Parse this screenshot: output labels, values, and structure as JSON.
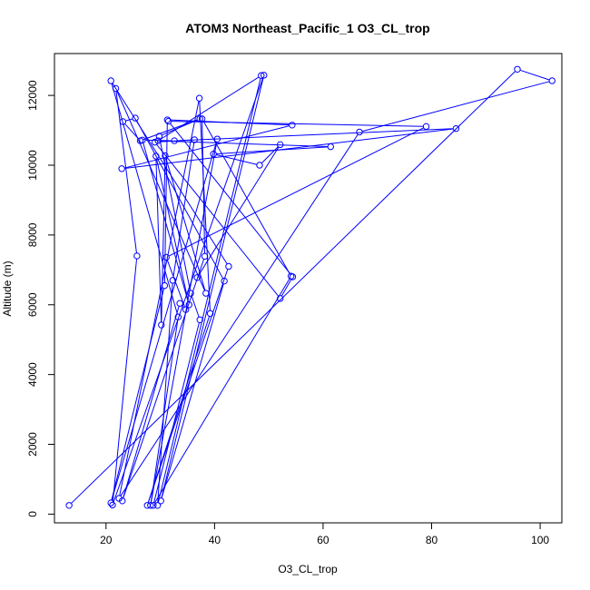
{
  "chart_data": {
    "type": "line",
    "title": "ATOM3 Northeast_Pacific_1 O3_CL_trop",
    "xlabel": "O3_CL_trop",
    "ylabel": "Altitude (m)",
    "xlim": [
      10.5,
      104
    ],
    "ylim": [
      -250,
      13200
    ],
    "xticks": [
      20,
      40,
      60,
      80,
      100
    ],
    "yticks": [
      0,
      2000,
      4000,
      6000,
      8000,
      10000,
      12000
    ],
    "grid": false,
    "line_color": "#0000ff",
    "marker": "open-circle",
    "series": [
      {
        "points": [
          [
            13.2,
            250
          ],
          [
            95.8,
            12750
          ],
          [
            102.2,
            12420
          ],
          [
            66.7,
            10950
          ],
          [
            22.4,
            450
          ],
          [
            37.2,
            11920
          ],
          [
            39.2,
            5750
          ],
          [
            27.6,
            250
          ],
          [
            42.6,
            7100
          ],
          [
            20.9,
            12420
          ],
          [
            33.3,
            5650
          ],
          [
            28.2,
            250
          ],
          [
            40.5,
            10750
          ],
          [
            20.9,
            320
          ],
          [
            30.8,
            6550
          ],
          [
            31.3,
            11300
          ],
          [
            54.3,
            11150
          ],
          [
            22.9,
            9900
          ],
          [
            84.5,
            11050
          ],
          [
            32.6,
            10700
          ],
          [
            26.7,
            10720
          ],
          [
            35.3,
            6000
          ],
          [
            29.2,
            10260
          ],
          [
            30.2,
            5420
          ],
          [
            30.9,
            10270
          ],
          [
            38.4,
            6330
          ],
          [
            21.8,
            12200
          ],
          [
            25.7,
            7400
          ],
          [
            21.2,
            260
          ],
          [
            49.1,
            12580
          ],
          [
            30.1,
            380
          ],
          [
            41.8,
            6680
          ],
          [
            25.4,
            11350
          ],
          [
            23.1,
            11250
          ],
          [
            26.3,
            10700
          ],
          [
            37.3,
            11330
          ],
          [
            29.8,
            10830
          ],
          [
            35.6,
            6330
          ],
          [
            37.3,
            5570
          ],
          [
            28.7,
            250
          ],
          [
            54.1,
            6820
          ],
          [
            37.7,
            11330
          ],
          [
            38.2,
            7390
          ],
          [
            23.0,
            380
          ],
          [
            33.6,
            6040
          ],
          [
            34.7,
            5860
          ],
          [
            31.1,
            7360
          ],
          [
            79.0,
            11110
          ],
          [
            31.5,
            11260
          ],
          [
            54.4,
            6800
          ],
          [
            52.1,
            6180
          ],
          [
            29.0,
            10660
          ],
          [
            36.3,
            10730
          ],
          [
            32.3,
            6700
          ],
          [
            29.5,
            250
          ],
          [
            48.6,
            12570
          ],
          [
            29.6,
            10700
          ],
          [
            61.4,
            10530
          ],
          [
            39.8,
            10320
          ],
          [
            48.3,
            10000
          ],
          [
            52.1,
            10590
          ],
          [
            36.8,
            6780
          ]
        ]
      }
    ]
  }
}
